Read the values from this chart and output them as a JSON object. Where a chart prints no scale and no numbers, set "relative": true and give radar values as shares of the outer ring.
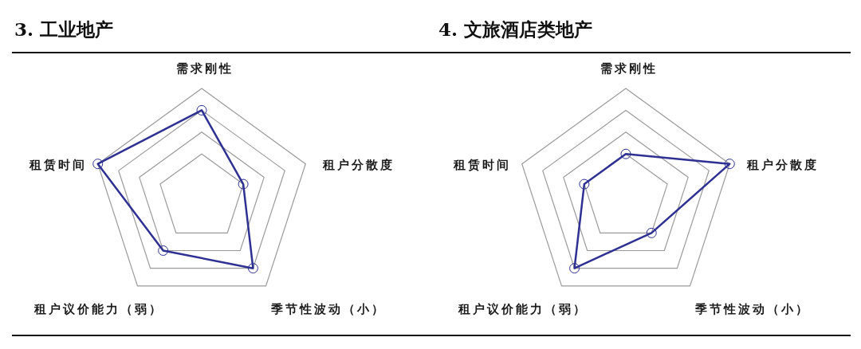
{
  "chart_data": [
    {
      "type": "radar",
      "title": "3. 工业地产",
      "categories": [
        "需求刚性",
        "租户分散度",
        "季节性波动（小）",
        "租户议价能力（弱）",
        "租赁时间"
      ],
      "relative": true,
      "series": [
        {
          "color": "#2e3192",
          "values": [
            0.8,
            0.4,
            0.8,
            0.6,
            1.0
          ]
        }
      ],
      "grid": true,
      "marker": "circle"
    },
    {
      "type": "radar",
      "title": "4. 文旅酒店类地产",
      "categories": [
        "需求刚性",
        "租户分散度",
        "季节性波动（小）",
        "租户议价能力（弱）",
        "租赁时间"
      ],
      "relative": true,
      "series": [
        {
          "color": "#2e3192",
          "values": [
            0.4,
            1.0,
            0.4,
            0.8,
            0.4
          ]
        }
      ],
      "grid": true,
      "marker": "circle"
    }
  ]
}
